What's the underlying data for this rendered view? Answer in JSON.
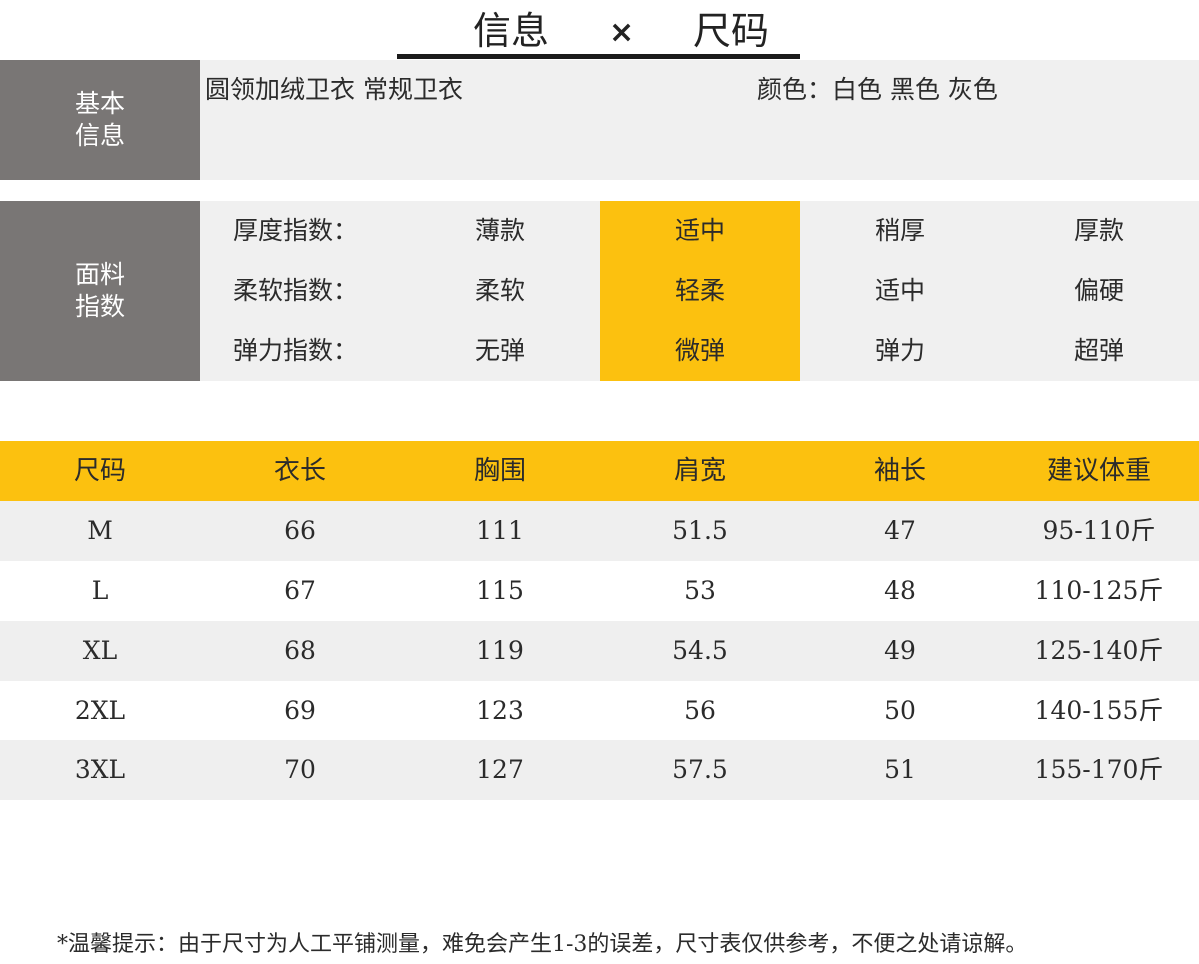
{
  "title": {
    "left": "信息",
    "separator": "×",
    "right": "尺码"
  },
  "basic": {
    "label": "基本信息",
    "name": "圆领加绒卫衣 常规卫衣",
    "colors": "颜色：白色 黑色 灰色"
  },
  "fabric": {
    "label": "面料指数",
    "rows": [
      {
        "key": "厚度指数：",
        "options": [
          "薄款",
          "适中",
          "稍厚",
          "厚款"
        ]
      },
      {
        "key": "柔软指数：",
        "options": [
          "柔软",
          "轻柔",
          "适中",
          "偏硬"
        ]
      },
      {
        "key": "弹力指数：",
        "options": [
          "无弹",
          "微弹",
          "弹力",
          "超弹"
        ]
      }
    ],
    "selected_option_index": 1,
    "highlight_color": "#fcc10f"
  },
  "size_table": {
    "headers": [
      "尺码",
      "衣长",
      "胸围",
      "肩宽",
      "袖长",
      "建议体重"
    ],
    "rows": [
      [
        "M",
        "66",
        "111",
        "51.5",
        "47",
        "95-110斤"
      ],
      [
        "L",
        "67",
        "115",
        "53",
        "48",
        "110-125斤"
      ],
      [
        "XL",
        "68",
        "119",
        "54.5",
        "49",
        "125-140斤"
      ],
      [
        "2XL",
        "69",
        "123",
        "56",
        "50",
        "140-155斤"
      ],
      [
        "3XL",
        "70",
        "127",
        "57.5",
        "51",
        "155-170斤"
      ]
    ],
    "header_color": "#fcc10f"
  },
  "note": "*温馨提示：由于尺寸为人工平铺测量，难免会产生1-3的误差，尺寸表仅供参考，不便之处请谅解。"
}
